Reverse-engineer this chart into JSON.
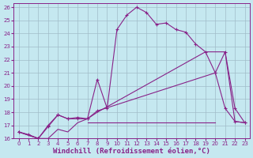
{
  "background_color": "#c5e8f0",
  "grid_color": "#a0bcc8",
  "line_color": "#882288",
  "xlabel": "Windchill (Refroidissement éolien,°C)",
  "xlabel_fontsize": 6.5,
  "xlim": [
    -0.5,
    23.5
  ],
  "ylim": [
    16,
    26.3
  ],
  "yticks": [
    16,
    17,
    18,
    19,
    20,
    21,
    22,
    23,
    24,
    25,
    26
  ],
  "xticks": [
    0,
    1,
    2,
    3,
    4,
    5,
    6,
    7,
    8,
    9,
    10,
    11,
    12,
    13,
    14,
    15,
    16,
    17,
    18,
    19,
    20,
    21,
    22,
    23
  ],
  "series1_x": [
    0,
    1,
    2,
    3,
    4,
    5,
    6,
    7,
    8,
    9,
    10,
    11,
    12,
    13,
    14,
    15,
    16,
    17,
    18,
    19,
    20,
    21,
    22,
    23
  ],
  "series1_y": [
    16.5,
    16.3,
    16.0,
    17.0,
    17.8,
    17.5,
    17.5,
    17.5,
    20.5,
    18.3,
    24.3,
    25.4,
    26.0,
    25.6,
    24.7,
    24.8,
    24.3,
    24.1,
    23.2,
    22.6,
    21.0,
    18.3,
    17.3,
    17.2
  ],
  "series2_x": [
    0,
    2,
    3,
    4,
    5,
    6,
    7,
    8,
    20,
    21,
    22,
    23
  ],
  "series2_y": [
    16.5,
    16.0,
    16.9,
    17.8,
    17.5,
    17.6,
    17.5,
    18.1,
    21.0,
    22.6,
    18.3,
    17.2
  ],
  "series3_x": [
    0,
    2,
    3,
    4,
    5,
    6,
    7,
    8,
    19,
    20,
    21,
    22,
    23
  ],
  "series3_y": [
    16.5,
    16.0,
    16.0,
    16.7,
    16.5,
    17.2,
    17.5,
    18.0,
    22.6,
    22.6,
    22.6,
    17.3,
    17.2
  ],
  "series4_x": [
    7,
    20
  ],
  "series4_y": [
    17.2,
    17.2
  ]
}
